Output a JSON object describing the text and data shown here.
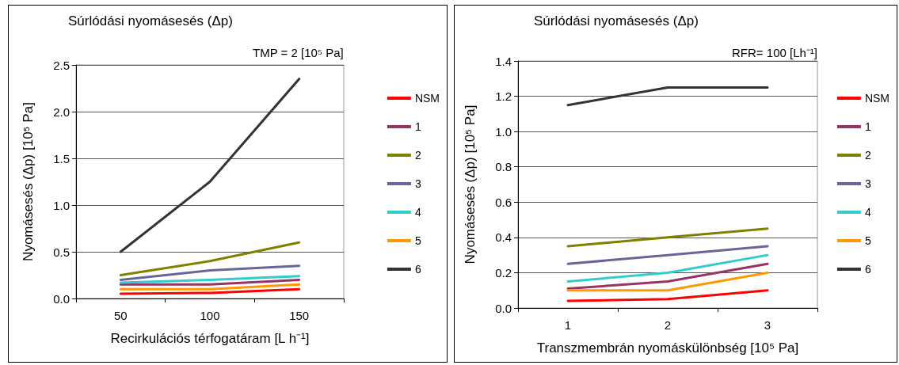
{
  "chart_data": [
    {
      "type": "line",
      "title": "Súrlódási nyomásesés (Δp)",
      "xlabel": "Recirkulációs térfogatáram [L h⁻¹]",
      "ylabel": "Nyomásesés (Δp) [10⁵ Pa]",
      "annotations": [
        "TMP = 2 [10⁵ Pa]"
      ],
      "categories": [
        "50",
        "100",
        "150"
      ],
      "series": [
        {
          "name": "NSM",
          "color": "#ff0000",
          "values": [
            0.05,
            0.06,
            0.1
          ]
        },
        {
          "name": "1",
          "color": "#993366",
          "values": [
            0.15,
            0.15,
            0.2
          ]
        },
        {
          "name": "2",
          "color": "#808000",
          "values": [
            0.25,
            0.4,
            0.6
          ]
        },
        {
          "name": "3",
          "color": "#666699",
          "values": [
            0.2,
            0.3,
            0.35
          ]
        },
        {
          "name": "4",
          "color": "#33cccc",
          "values": [
            0.17,
            0.2,
            0.24
          ]
        },
        {
          "name": "5",
          "color": "#ff9900",
          "values": [
            0.1,
            0.1,
            0.15
          ]
        },
        {
          "name": "6",
          "color": "#333333",
          "values": [
            0.5,
            1.25,
            2.35
          ]
        }
      ],
      "ylim": [
        0,
        2.5
      ],
      "yticks": [
        {
          "value": 0,
          "label": "0.0"
        },
        0.5,
        {
          "value": 1,
          "label": "1.0"
        },
        1.5,
        {
          "value": 2,
          "label": "2.0"
        },
        2.5
      ],
      "grid": "y",
      "legend": "right",
      "marker": "none",
      "line_style": "solid"
    },
    {
      "type": "line",
      "title": "Súrlódási nyomásesés (Δp)",
      "xlabel": "Transzmembrán nyomáskülönbség [10⁵ Pa]",
      "ylabel": "Nyomásesés (Δp) [10⁵ Pa]",
      "annotations": [
        "RFR= 100 [Lh⁻¹]"
      ],
      "categories": [
        "1",
        "2",
        "3"
      ],
      "series": [
        {
          "name": "NSM",
          "color": "#ff0000",
          "values": [
            0.04,
            0.05,
            0.1
          ]
        },
        {
          "name": "1",
          "color": "#993366",
          "values": [
            0.11,
            0.15,
            0.25
          ]
        },
        {
          "name": "2",
          "color": "#808000",
          "values": [
            0.35,
            0.4,
            0.45
          ]
        },
        {
          "name": "3",
          "color": "#666699",
          "values": [
            0.25,
            0.3,
            0.35
          ]
        },
        {
          "name": "4",
          "color": "#33cccc",
          "values": [
            0.15,
            0.2,
            0.3
          ]
        },
        {
          "name": "5",
          "color": "#ff9900",
          "values": [
            0.1,
            0.1,
            0.2
          ]
        },
        {
          "name": "6",
          "color": "#333333",
          "values": [
            1.15,
            1.25,
            1.25
          ]
        }
      ],
      "ylim": [
        0,
        1.4
      ],
      "yticks": [
        {
          "value": 0,
          "label": "0.0"
        },
        0.2,
        0.4,
        0.6,
        0.8,
        {
          "value": 1,
          "label": "1.0"
        },
        1.2,
        1.4
      ],
      "grid": "y",
      "legend": "right",
      "marker": "none",
      "line_style": "solid"
    }
  ]
}
